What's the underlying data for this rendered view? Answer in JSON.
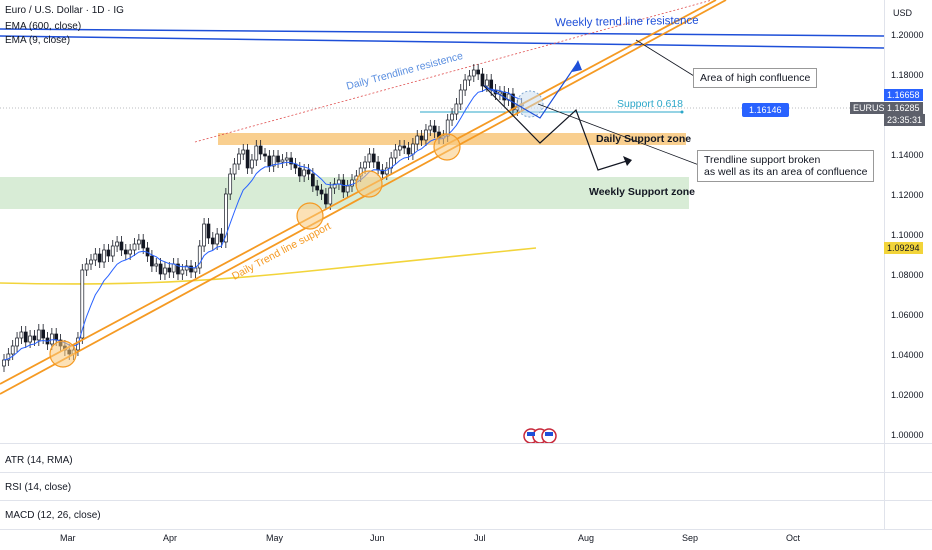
{
  "header": {
    "symbol_title": "Euro / U.S. Dollar · 1D · IG",
    "ema_long": "EMA (600, close)",
    "ema_short": "EMA (9, close)"
  },
  "indicators": {
    "atr": "ATR (14, RMA)",
    "rsi": "RSI (14, close)",
    "macd": "MACD (12, 26, close)"
  },
  "price_scale": {
    "currency": "USD",
    "ticks": [
      "1.20000",
      "1.18000",
      "1.16000",
      "1.14000",
      "1.12000",
      "1.10000",
      "1.08000",
      "1.06000",
      "1.04000",
      "1.02000",
      "1.00000"
    ],
    "high_badge": "1.16658",
    "symbol_badge": "EURUSD",
    "last_price": "1.16285",
    "countdown": "23:35:31",
    "ema_badge": "1.09294",
    "support_badge": "1.16146"
  },
  "time_axis": [
    "Mar",
    "Apr",
    "May",
    "Jun",
    "Jul",
    "Aug",
    "Sep",
    "Oct"
  ],
  "annotations": {
    "weekly_trend": "Weekly trend line resistence",
    "daily_trend_res": "Daily Trendline resistence",
    "daily_trend_sup": "Daily Trend line support",
    "support_618": "Support 0.618",
    "daily_support_zone": "Daily Support zone",
    "weekly_support_zone": "Weekly Support zone",
    "high_confluence": "Area of high confluence",
    "trendline_broken_1": "Trendline support broken",
    "trendline_broken_2": "as well as its an area of confluence"
  },
  "colors": {
    "up": "#131722",
    "down": "#131722",
    "ema600": "#f2d43a",
    "ema9": "#2962ff",
    "trend": "#f59a23",
    "weekly_line": "#1e4fd8",
    "support_zone": "#f9cf8f",
    "weekly_zone": "#d8ecd6",
    "badge_blue": "#2962ff",
    "badge_dark": "#5d606b"
  },
  "chart_data": {
    "type": "candlestick",
    "symbol": "EURUSD",
    "interval": "1D",
    "ylim": [
      0.995,
      1.215
    ],
    "x_months": [
      "Mar",
      "Apr",
      "May",
      "Jun",
      "Jul",
      "Aug",
      "Sep",
      "Oct"
    ],
    "closes": [
      1.035,
      1.038,
      1.042,
      1.046,
      1.049,
      1.044,
      1.047,
      1.045,
      1.05,
      1.046,
      1.043,
      1.048,
      1.045,
      1.042,
      1.04,
      1.038,
      1.04,
      1.046,
      1.08,
      1.083,
      1.085,
      1.088,
      1.084,
      1.09,
      1.087,
      1.092,
      1.094,
      1.09,
      1.088,
      1.09,
      1.093,
      1.095,
      1.091,
      1.087,
      1.082,
      1.083,
      1.078,
      1.081,
      1.079,
      1.083,
      1.078,
      1.08,
      1.082,
      1.079,
      1.081,
      1.092,
      1.103,
      1.096,
      1.093,
      1.098,
      1.094,
      1.118,
      1.128,
      1.133,
      1.138,
      1.14,
      1.131,
      1.135,
      1.142,
      1.138,
      1.137,
      1.132,
      1.137,
      1.134,
      1.135,
      1.136,
      1.133,
      1.131,
      1.127,
      1.13,
      1.128,
      1.122,
      1.12,
      1.118,
      1.113,
      1.121,
      1.123,
      1.125,
      1.119,
      1.122,
      1.125,
      1.127,
      1.131,
      1.134,
      1.138,
      1.134,
      1.13,
      1.128,
      1.131,
      1.136,
      1.14,
      1.142,
      1.141,
      1.138,
      1.143,
      1.147,
      1.145,
      1.15,
      1.152,
      1.149,
      1.146,
      1.147,
      1.155,
      1.158,
      1.163,
      1.17,
      1.175,
      1.177,
      1.18,
      1.178,
      1.172,
      1.175,
      1.17,
      1.168,
      1.169,
      1.165,
      1.168,
      1.16,
      1.162,
      1.163
    ],
    "ema600": [
      {
        "x": "Feb",
        "y": 1.0795
      },
      {
        "x": "Jul",
        "y": 1.0929
      }
    ],
    "levels": {
      "support_618": 1.16146,
      "daily_support_zone": [
        1.1475,
        1.1535
      ],
      "weekly_support_zone": [
        1.1125,
        1.1285
      ],
      "weekly_resistance": [
        1.2005,
        1.1945
      ],
      "last_price": 1.16285,
      "high": 1.16658
    },
    "grid": false,
    "legend": "top-left"
  }
}
